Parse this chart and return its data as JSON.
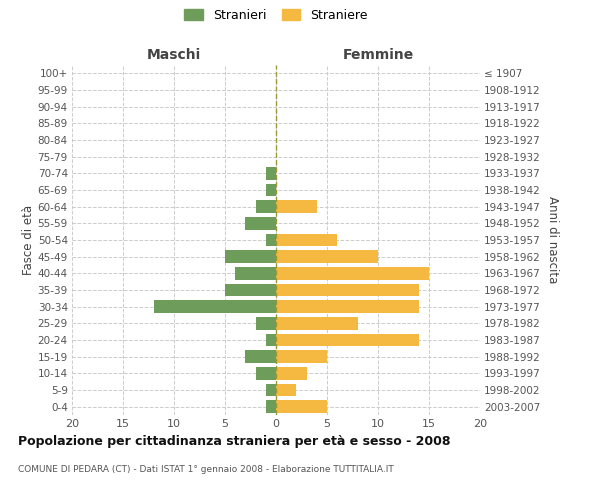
{
  "age_groups": [
    "0-4",
    "5-9",
    "10-14",
    "15-19",
    "20-24",
    "25-29",
    "30-34",
    "35-39",
    "40-44",
    "45-49",
    "50-54",
    "55-59",
    "60-64",
    "65-69",
    "70-74",
    "75-79",
    "80-84",
    "85-89",
    "90-94",
    "95-99",
    "100+"
  ],
  "birth_years": [
    "2003-2007",
    "1998-2002",
    "1993-1997",
    "1988-1992",
    "1983-1987",
    "1978-1982",
    "1973-1977",
    "1968-1972",
    "1963-1967",
    "1958-1962",
    "1953-1957",
    "1948-1952",
    "1943-1947",
    "1938-1942",
    "1933-1937",
    "1928-1932",
    "1923-1927",
    "1918-1922",
    "1913-1917",
    "1908-1912",
    "≤ 1907"
  ],
  "maschi": [
    1,
    1,
    2,
    3,
    1,
    2,
    12,
    5,
    4,
    5,
    1,
    3,
    2,
    1,
    1,
    0,
    0,
    0,
    0,
    0,
    0
  ],
  "femmine": [
    5,
    2,
    3,
    5,
    14,
    8,
    14,
    14,
    15,
    10,
    6,
    0,
    4,
    0,
    0,
    0,
    0,
    0,
    0,
    0,
    0
  ],
  "color_maschi": "#6e9c5a",
  "color_femmine": "#f5b942",
  "title_main": "Popolazione per cittadinanza straniera per età e sesso - 2008",
  "title_sub": "COMUNE DI PEDARA (CT) - Dati ISTAT 1° gennaio 2008 - Elaborazione TUTTITALIA.IT",
  "legend_maschi": "Stranieri",
  "legend_femmine": "Straniere",
  "xlabel_left": "Maschi",
  "xlabel_right": "Femmine",
  "ylabel_left": "Fasce di età",
  "ylabel_right": "Anni di nascita",
  "xlim": 20,
  "background_color": "#ffffff",
  "grid_color": "#cccccc"
}
